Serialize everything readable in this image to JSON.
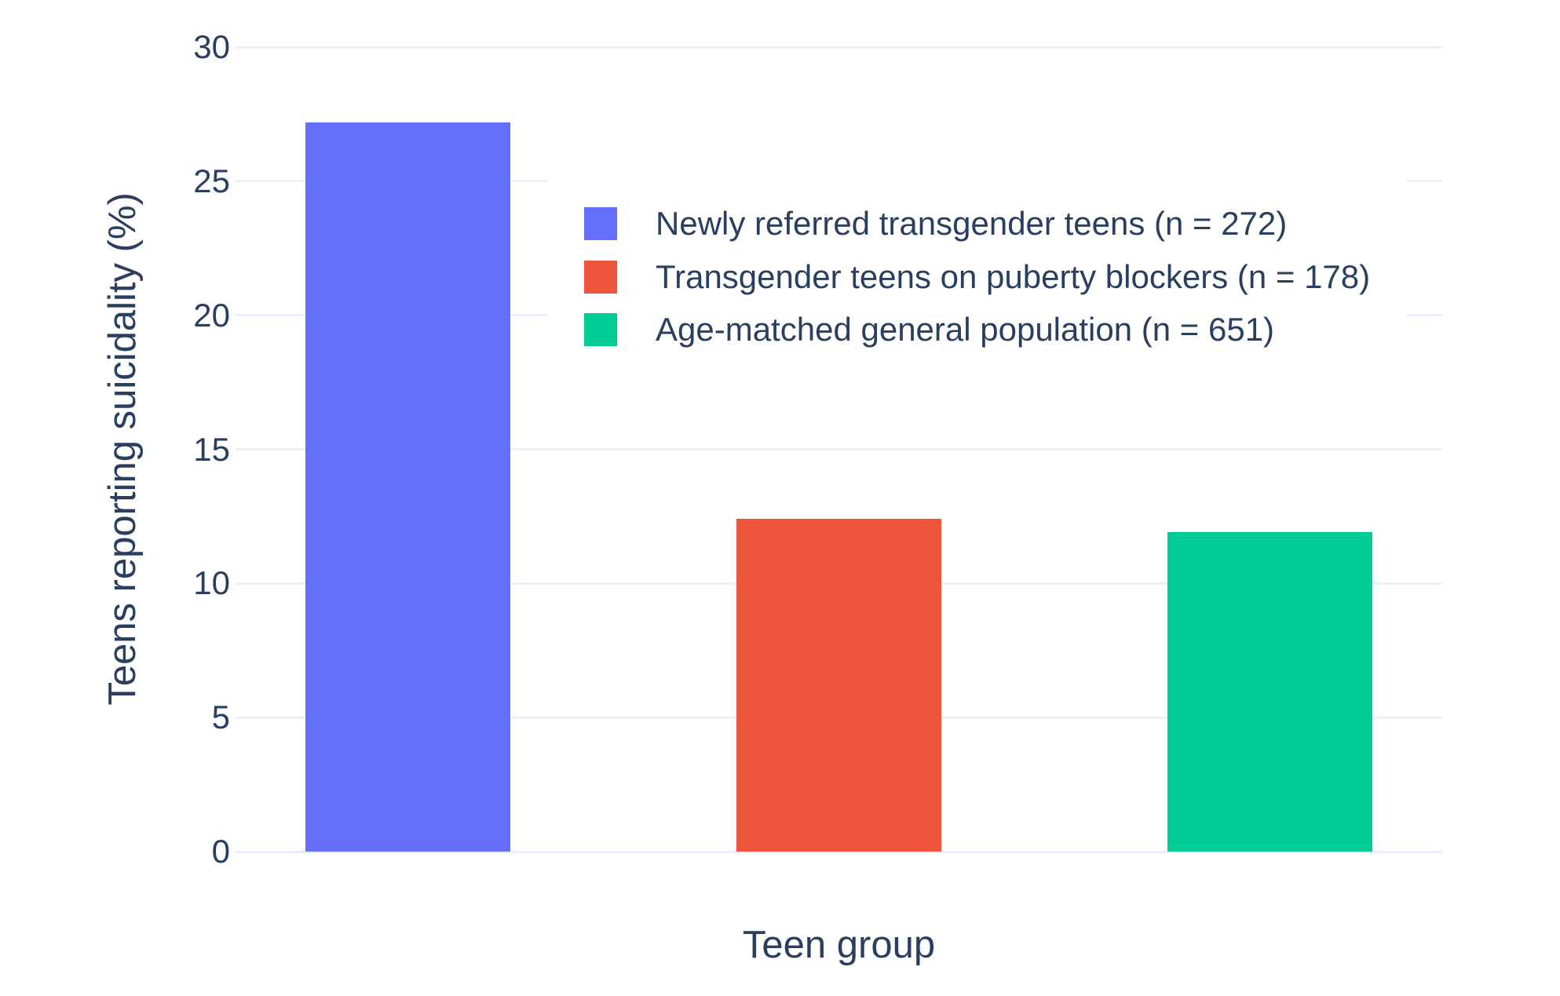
{
  "chart_data": {
    "type": "bar",
    "title": "",
    "xlabel": "Teen group",
    "ylabel": "Teens reporting suicidality (%)",
    "categories": [
      "Newly referred transgender teens (n = 272)",
      "Transgender teens on puberty blockers (n = 178)",
      "Age-matched general population (n = 651)"
    ],
    "values": [
      27.2,
      12.4,
      11.9
    ],
    "colors": [
      "#636EFA",
      "#EF553B",
      "#00CC96"
    ],
    "yticks": [
      0,
      5,
      10,
      15,
      20,
      25,
      30
    ],
    "ylim": [
      0,
      30.41
    ],
    "xrange": [
      -0.4,
      2.4
    ],
    "bar_width": 0.475,
    "grid": true,
    "legend_position": "inside-top-center",
    "background_color": "#FFFFFF",
    "gridline_color": "#EBF0F8",
    "text_color": "#2A3F5F"
  }
}
